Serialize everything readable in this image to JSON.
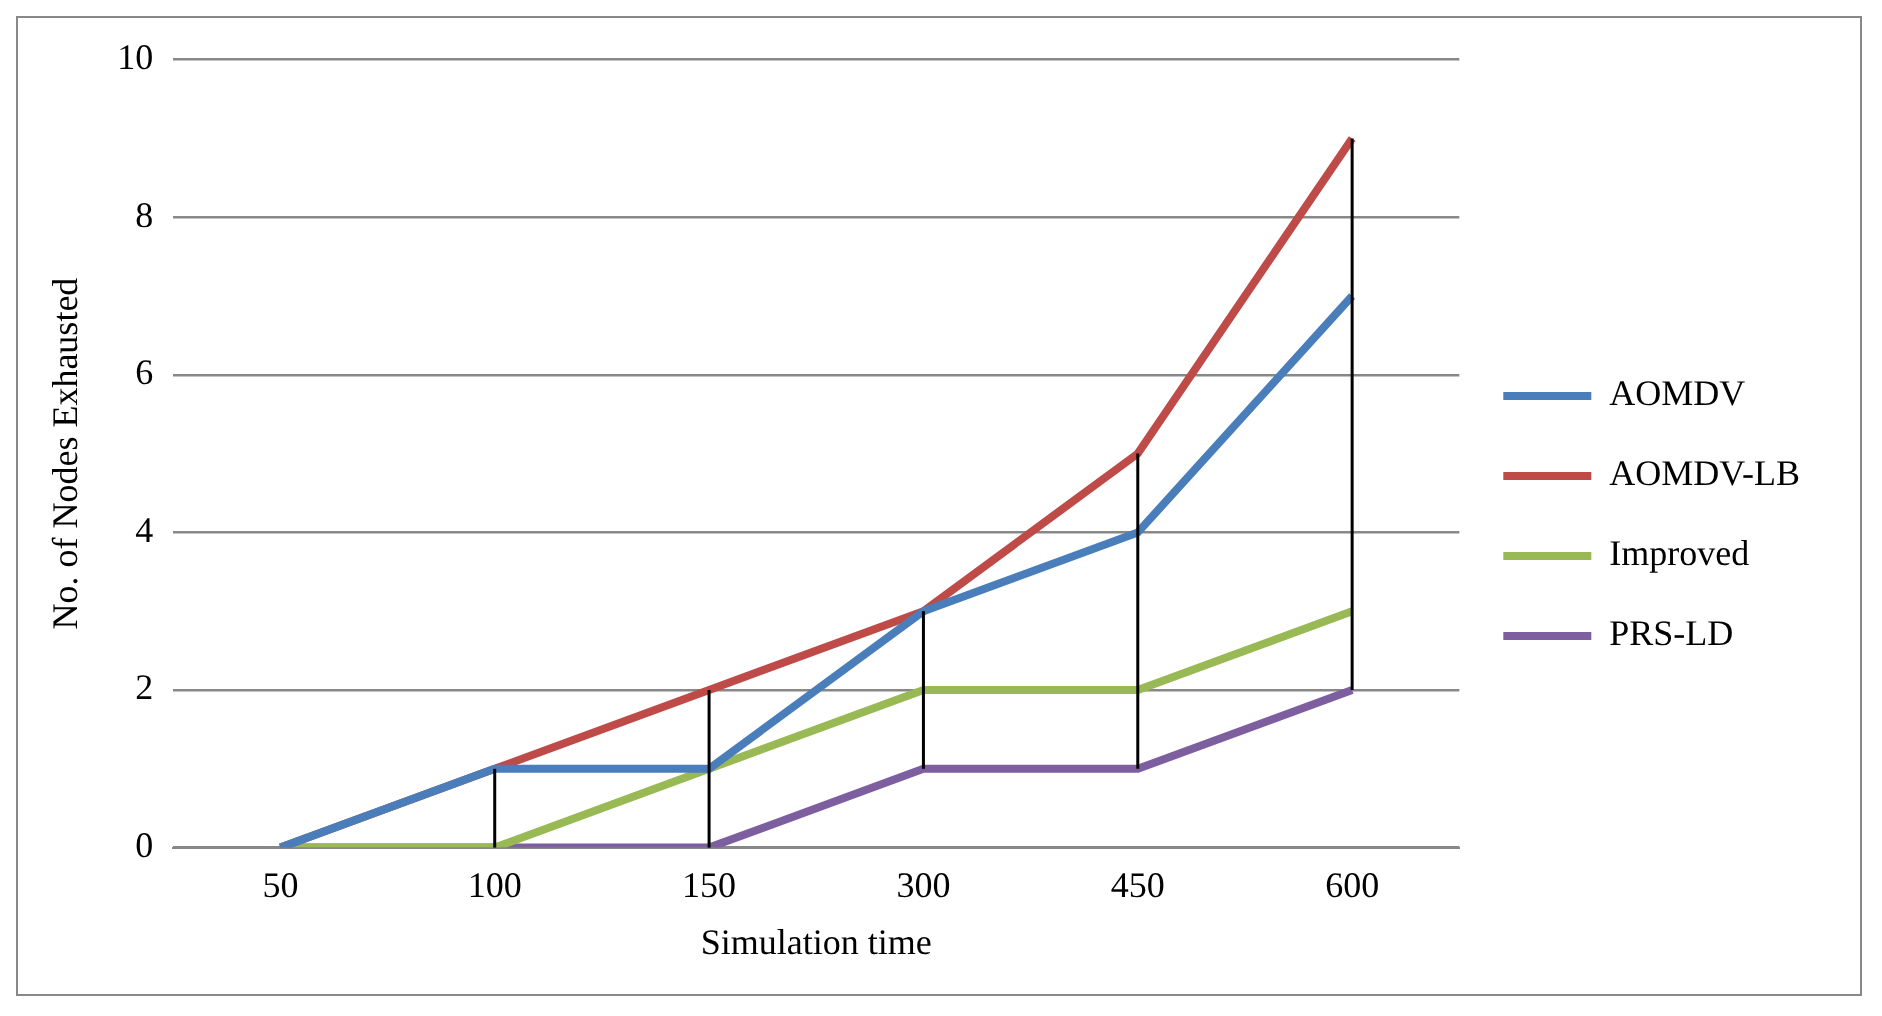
{
  "chart_data": {
    "type": "line",
    "xlabel": "Simulation time",
    "ylabel": "No. of Nodes Exhausted",
    "categories": [
      "50",
      "100",
      "150",
      "300",
      "450",
      "600"
    ],
    "series": [
      {
        "name": "AOMDV",
        "color": "#4a7ebb",
        "values": [
          0,
          1,
          1,
          3,
          4,
          7
        ]
      },
      {
        "name": "AOMDV-LB",
        "color": "#be4b48",
        "values": [
          0,
          1,
          2,
          3,
          5,
          9
        ]
      },
      {
        "name": "Improved",
        "color": "#98b954",
        "values": [
          0,
          0,
          1,
          2,
          2,
          3
        ]
      },
      {
        "name": "PRS-LD",
        "color": "#7d5fa0",
        "values": [
          0,
          0,
          0,
          1,
          1,
          2
        ],
        "errors": [
          null,
          [
            0,
            1
          ],
          [
            0,
            2
          ],
          [
            1,
            3
          ],
          [
            1,
            5
          ],
          [
            2,
            9
          ]
        ]
      }
    ],
    "ylim": [
      0,
      10
    ],
    "yticks": [
      0,
      2,
      4,
      6,
      8,
      10
    ],
    "grid": "y",
    "legend": "right",
    "marker": "none",
    "line_style": "solid"
  }
}
